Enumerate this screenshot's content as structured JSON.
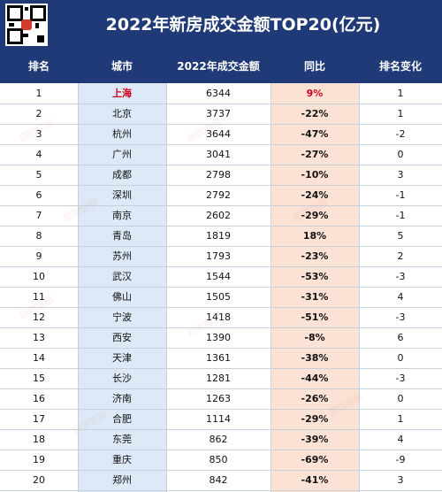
{
  "title": "2022年新房成交金额TOP20(亿元)",
  "headers": {
    "rank": "排名",
    "city": "城市",
    "amount": "2022年成交金额",
    "yoy": "同比",
    "rank_change": "排名变化"
  },
  "colors": {
    "header_bg": "#1f3a77",
    "city_col_bg": "#dde9f6",
    "yoy_col_bg": "#fbe2d5",
    "highlight_red": "#d0021b"
  },
  "chart_data": {
    "type": "table",
    "title": "2022年新房成交金额TOP20(亿元)",
    "columns": [
      "排名",
      "城市",
      "2022年成交金额",
      "同比",
      "排名变化"
    ],
    "rows": [
      {
        "rank": "1",
        "city": "上海",
        "amount": "6344",
        "yoy": "9%",
        "rank_change": "1",
        "highlight": true
      },
      {
        "rank": "2",
        "city": "北京",
        "amount": "3737",
        "yoy": "-22%",
        "rank_change": "1"
      },
      {
        "rank": "3",
        "city": "杭州",
        "amount": "3644",
        "yoy": "-47%",
        "rank_change": "-2"
      },
      {
        "rank": "4",
        "city": "广州",
        "amount": "3041",
        "yoy": "-27%",
        "rank_change": "0"
      },
      {
        "rank": "5",
        "city": "成都",
        "amount": "2798",
        "yoy": "-10%",
        "rank_change": "3"
      },
      {
        "rank": "6",
        "city": "深圳",
        "amount": "2792",
        "yoy": "-24%",
        "rank_change": "-1"
      },
      {
        "rank": "7",
        "city": "南京",
        "amount": "2602",
        "yoy": "-29%",
        "rank_change": "-1"
      },
      {
        "rank": "8",
        "city": "青岛",
        "amount": "1819",
        "yoy": "18%",
        "rank_change": "5"
      },
      {
        "rank": "9",
        "city": "苏州",
        "amount": "1793",
        "yoy": "-23%",
        "rank_change": "2"
      },
      {
        "rank": "10",
        "city": "武汉",
        "amount": "1544",
        "yoy": "-53%",
        "rank_change": "-3"
      },
      {
        "rank": "11",
        "city": "佛山",
        "amount": "1505",
        "yoy": "-31%",
        "rank_change": "4"
      },
      {
        "rank": "12",
        "city": "宁波",
        "amount": "1418",
        "yoy": "-51%",
        "rank_change": "-3"
      },
      {
        "rank": "13",
        "city": "西安",
        "amount": "1390",
        "yoy": "-8%",
        "rank_change": "6"
      },
      {
        "rank": "14",
        "city": "天津",
        "amount": "1361",
        "yoy": "-38%",
        "rank_change": "0"
      },
      {
        "rank": "15",
        "city": "长沙",
        "amount": "1281",
        "yoy": "-44%",
        "rank_change": "-3"
      },
      {
        "rank": "16",
        "city": "济南",
        "amount": "1263",
        "yoy": "-26%",
        "rank_change": "0"
      },
      {
        "rank": "17",
        "city": "合肥",
        "amount": "1114",
        "yoy": "-29%",
        "rank_change": "1"
      },
      {
        "rank": "18",
        "city": "东莞",
        "amount": "862",
        "yoy": "-39%",
        "rank_change": "4"
      },
      {
        "rank": "19",
        "city": "重庆",
        "amount": "850",
        "yoy": "-69%",
        "rank_change": "-9"
      },
      {
        "rank": "20",
        "city": "郑州",
        "amount": "842",
        "yoy": "-41%",
        "rank_change": "3"
      }
    ]
  }
}
